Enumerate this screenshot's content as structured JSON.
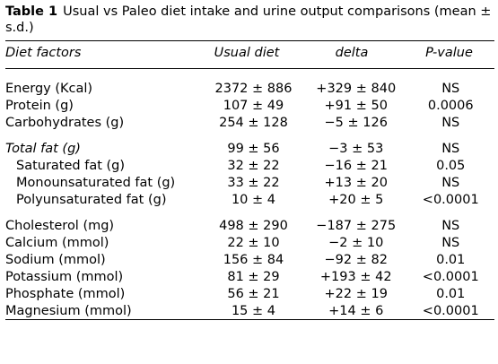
{
  "caption": {
    "label": "Table 1",
    "text": "Usual vs Paleo diet intake and urine output comparisons (mean ± s.d.)"
  },
  "columns": [
    "Diet factors",
    "Usual diet",
    "delta",
    "P-value"
  ],
  "groups": [
    {
      "rows": [
        {
          "factor": "Energy (Kcal)",
          "usual": "2372 ± 886",
          "delta": "+329 ± 840",
          "p": "NS"
        },
        {
          "factor": "Protein (g)",
          "usual": "107 ± 49",
          "delta": "+91 ± 50",
          "p": "0.0006"
        },
        {
          "factor": "Carbohydrates (g)",
          "usual": "254 ± 128",
          "delta": "−5 ± 126",
          "p": "NS"
        }
      ]
    },
    {
      "rows": [
        {
          "factor": "Total fat (g)",
          "usual": "99 ± 56",
          "delta": "−3 ± 53",
          "p": "NS"
        },
        {
          "factor": "Saturated fat (g)",
          "usual": "32 ± 22",
          "delta": "−16 ± 21",
          "p": "0.05"
        },
        {
          "factor": "Monounsaturated fat (g)",
          "usual": "33 ± 22",
          "delta": "+13 ± 20",
          "p": "NS"
        },
        {
          "factor": "Polyunsaturated fat (g)",
          "usual": "10 ± 4",
          "delta": "+20 ± 5",
          "p": "<0.0001"
        }
      ]
    },
    {
      "rows": [
        {
          "factor": "Cholesterol (mg)",
          "usual": "498 ± 290",
          "delta": "−187 ± 275",
          "p": "NS"
        },
        {
          "factor": "Calcium (mmol)",
          "usual": "22 ± 10",
          "delta": "−2 ± 10",
          "p": "NS"
        },
        {
          "factor": "Sodium (mmol)",
          "usual": "156 ± 84",
          "delta": "−92 ± 82",
          "p": "0.01"
        },
        {
          "factor": "Potassium (mmol)",
          "usual": "81 ± 29",
          "delta": "+193 ± 42",
          "p": "<0.0001"
        },
        {
          "factor": "Phosphate (mmol)",
          "usual": "56 ± 21",
          "delta": "+22 ± 19",
          "p": "0.01"
        },
        {
          "factor": "Magnesium (mmol)",
          "usual": "15 ± 4",
          "delta": "+14 ± 6",
          "p": "<0.0001"
        }
      ]
    }
  ]
}
